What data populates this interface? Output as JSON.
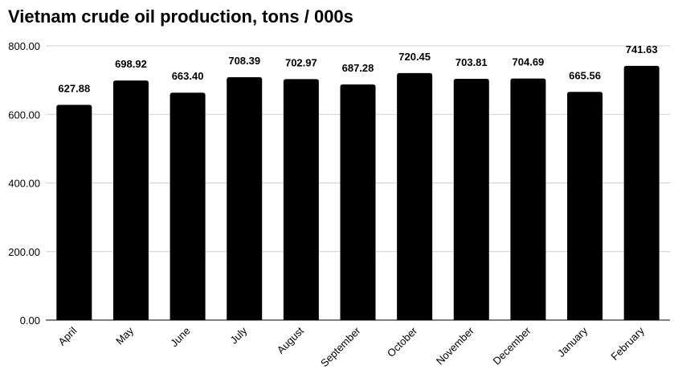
{
  "chart_data": {
    "type": "bar",
    "title": "Vietnam crude oil production,  tons / 000s",
    "xlabel": "",
    "ylabel": "",
    "categories": [
      "April",
      "May",
      "June",
      "July",
      "August",
      "September",
      "October",
      "November",
      "December",
      "January",
      "February"
    ],
    "values": [
      627.88,
      698.92,
      663.4,
      708.39,
      702.97,
      687.28,
      720.45,
      703.81,
      704.69,
      665.56,
      741.63
    ],
    "value_labels": [
      "627.88",
      "698.92",
      "663.40",
      "708.39",
      "702.97",
      "687.28",
      "720.45",
      "703.81",
      "704.69",
      "665.56",
      "741.63"
    ],
    "ylim": [
      0,
      800
    ],
    "yticks": [
      0,
      200,
      400,
      600,
      800
    ],
    "ytick_labels": [
      "0.00",
      "200.00",
      "400.00",
      "600.00",
      "800.00"
    ],
    "grid": true,
    "legend": "none",
    "colors": {
      "bar": "#000000",
      "grid": "#d0d0d0",
      "text": "#000000",
      "axis": "#000000"
    }
  }
}
